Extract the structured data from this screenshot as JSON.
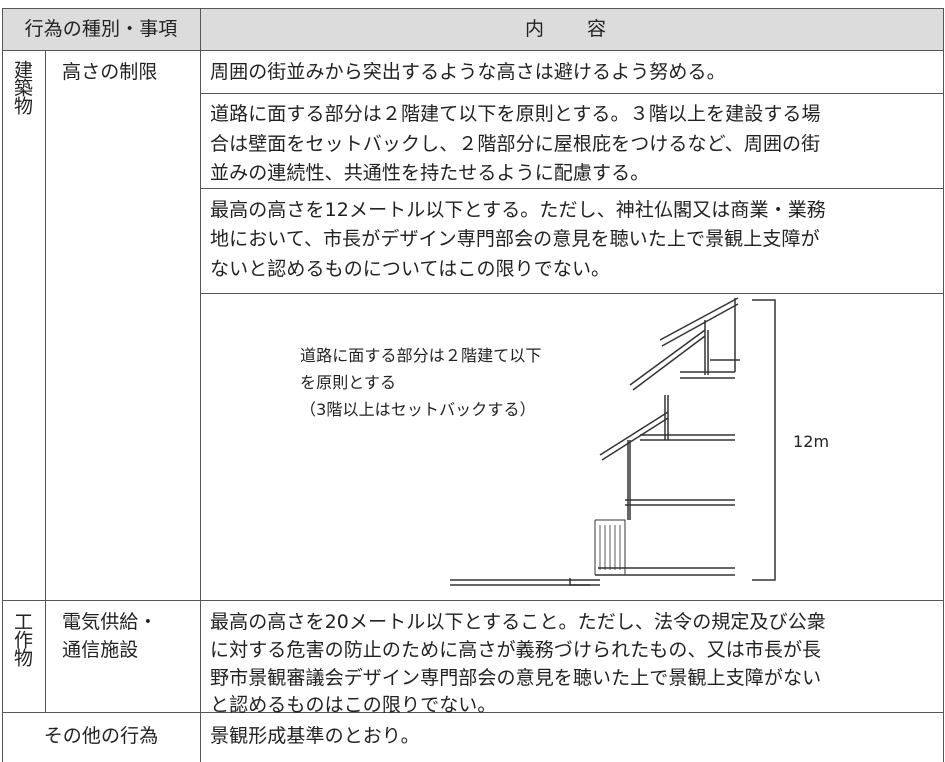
{
  "header": {
    "kind": "行為の種別・事項",
    "content": "内　容"
  },
  "rows": [
    {
      "category": "建築物",
      "item": "高さの制限",
      "contents": [
        [
          "周囲の街並みから突出するような高さは避けるよう努める。"
        ],
        [
          "道路に面する部分は２階建て以下を原則とする。３階以上を建設する場",
          "合は壁面をセットバックし、２階部分に屋根庇をつけるなど、周囲の街",
          "並みの連続性、共通性を持たせるように配慮する。"
        ],
        [
          "最高の高さを12メートル以下とする。ただし、神社仏閣又は商業・業務",
          "地において、市長がデザイン専門部会の意見を聴いた上で景観上支障が",
          "ないと認めるものについてはこの限りでない。"
        ]
      ],
      "diagram": {
        "note": [
          "道路に面する部分は２階建て以下",
          "を原則とする",
          "（3階以上はセットバックする）"
        ],
        "height": "12m"
      }
    },
    {
      "category": "工作物",
      "item": [
        "電気供給・",
        "通信施設"
      ],
      "contents": [
        [
          "最高の高さを20メートル以下とすること。ただし、法令の規定及び公衆",
          "に対する危害の防止のために高さが義務づけられたもの、又は市長が長",
          "野市景観審議会デザイン専門部会の意見を聴いた上で景観上支障がない",
          "と認めるものはこの限りでない。"
        ]
      ]
    },
    {
      "item": "その他の行為",
      "contents": [
        [
          "景観形成基準のとおり。"
        ]
      ]
    }
  ]
}
